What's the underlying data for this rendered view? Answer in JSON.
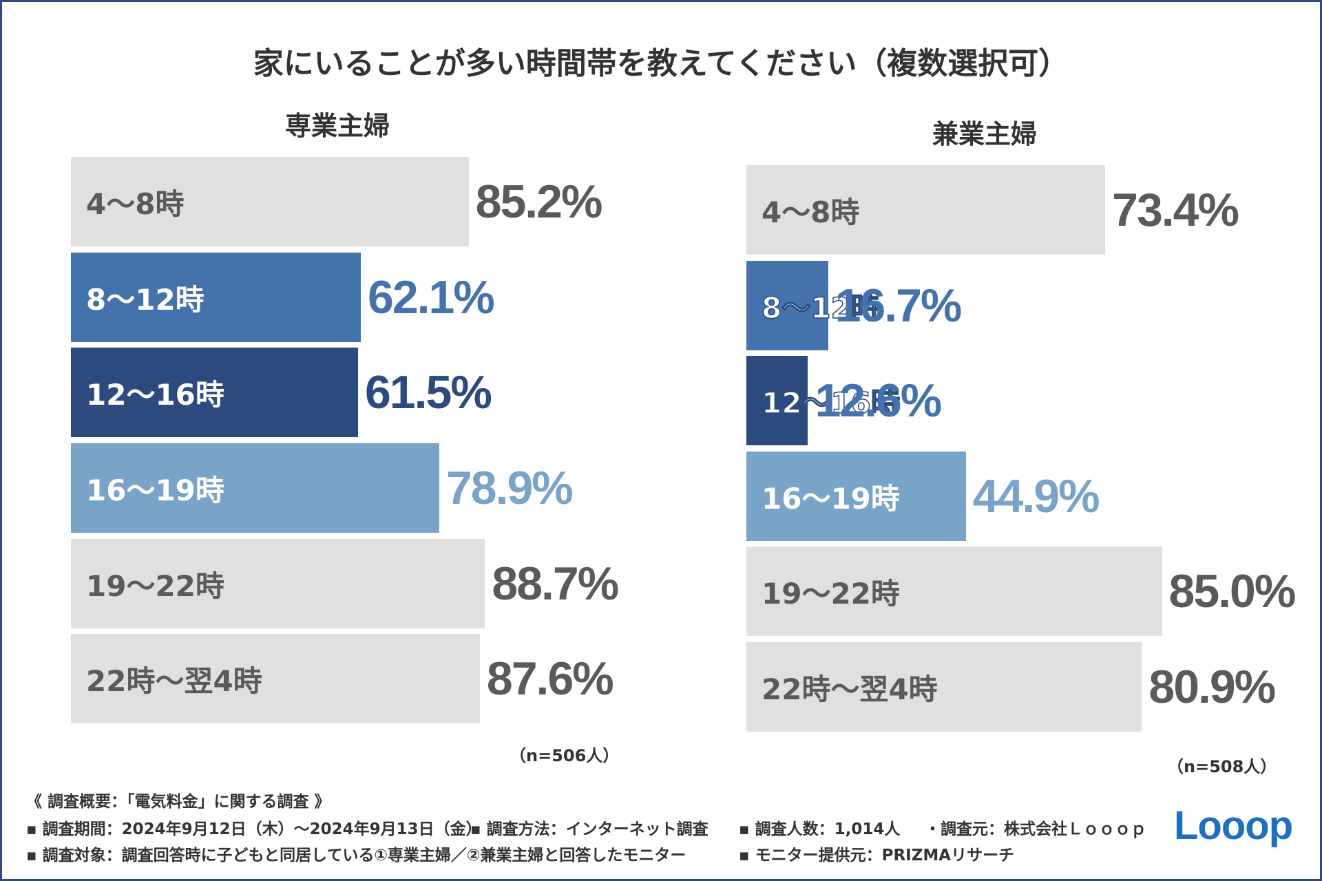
{
  "title": "家にいることが多い時間帯を教えてください（複数選択可）",
  "chart_data": [
    {
      "type": "bar",
      "orientation": "horizontal",
      "title": "専業主婦",
      "categories": [
        "4〜8時",
        "8〜12時",
        "12〜16時",
        "16〜19時",
        "19〜22時",
        "22時〜翌4時"
      ],
      "values": [
        85.2,
        62.1,
        61.5,
        78.9,
        88.7,
        87.6
      ],
      "value_labels": [
        "85.2%",
        "62.1%",
        "61.5%",
        "78.9%",
        "88.7%",
        "87.6%"
      ],
      "colors": [
        "#e0e0e0",
        "#4472ab",
        "#2c4a7e",
        "#79a3c7",
        "#e0e0e0",
        "#e0e0e0"
      ],
      "value_colors": [
        "#5a5a5a",
        "#4472ab",
        "#2c4a7e",
        "#79a3c7",
        "#5a5a5a",
        "#5a5a5a"
      ],
      "xlim": [
        0,
        100
      ],
      "note": "（n=506人）"
    },
    {
      "type": "bar",
      "orientation": "horizontal",
      "title": "兼業主婦",
      "categories": [
        "4〜8時",
        "8〜12時",
        "12〜16時",
        "16〜19時",
        "19〜22時",
        "22時〜翌4時"
      ],
      "values": [
        73.4,
        16.7,
        12.6,
        44.9,
        85.0,
        80.9
      ],
      "value_labels": [
        "73.4%",
        "16.7%",
        "12.6%",
        "44.9%",
        "85.0%",
        "80.9%"
      ],
      "colors": [
        "#e0e0e0",
        "#4472ab",
        "#2c4a7e",
        "#79a3c7",
        "#e0e0e0",
        "#e0e0e0"
      ],
      "value_colors": [
        "#5a5a5a",
        "#4472ab",
        "#4472ab",
        "#79a3c7",
        "#5a5a5a",
        "#5a5a5a"
      ],
      "xlim": [
        0,
        100
      ],
      "note": "（n=508人）"
    }
  ],
  "footer": {
    "heading": "《 調査概要：「電気料金」に関する調査 》",
    "period": "▪ 調査期間：2024年9月12日（木）〜2024年9月13日（金）",
    "method": "▪ 調査方法：インターネット調査",
    "count": "▪ 調査人数：1,014人",
    "source": "・調査元：株式会社Ｌｏｏｏｐ",
    "target": "▪ 調査対象：調査回答時に子どもと同居している①専業主婦／②兼業主婦と回答したモニター",
    "provider": "▪ モニター提供元：PRIZMAリサーチ"
  },
  "logo": "Looop"
}
